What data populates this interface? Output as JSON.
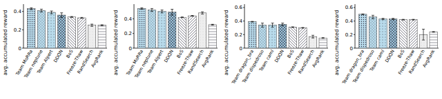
{
  "chart_data": [
    {
      "type": "bar",
      "y_label": "avg. accumulated reward",
      "categories": [
        "Team MoRRa",
        "Team neptune",
        "Team Alpert",
        "DDQN",
        "BoS",
        "Freeze-Thaw",
        "RandSearch",
        "AvgRank"
      ],
      "values": [
        0.43,
        0.41,
        0.39,
        0.36,
        0.34,
        0.33,
        0.25,
        0.25
      ],
      "errors": [
        0.01,
        0.015,
        0.015,
        0.025,
        0.005,
        0.005,
        0.012,
        0.005
      ],
      "colors": [
        "#b9dcec",
        "#b9dcec",
        "#b9dcec",
        "#9cc6dc",
        "#ffffff",
        "#ffffff",
        "#eeeeee",
        "#ffffff"
      ],
      "ylim": [
        0,
        0.48
      ],
      "yticks": [
        0,
        0.2,
        0.4
      ]
    },
    {
      "type": "bar",
      "y_label": "avg. accumulated reward",
      "categories": [
        "Team MoRRa",
        "Team neptune",
        "Team Alpert",
        "DDQN",
        "BoS",
        "Freeze-Thaw",
        "RandSearch",
        "AvgRank"
      ],
      "values": [
        0.54,
        0.52,
        0.5,
        0.49,
        0.42,
        0.44,
        0.48,
        0.32
      ],
      "errors": [
        0.01,
        0.02,
        0.02,
        0.04,
        0.005,
        0.005,
        0.015,
        0.005
      ],
      "colors": [
        "#b9dcec",
        "#b9dcec",
        "#b9dcec",
        "#9cc6dc",
        "#ffffff",
        "#ffffff",
        "#eeeeee",
        "#ffffff"
      ],
      "ylim": [
        0,
        0.6
      ],
      "yticks": [
        0,
        0.2,
        0.4
      ]
    },
    {
      "type": "bar",
      "y_label": "avg. accumulated reward",
      "categories": [
        "Team dragon_bra",
        "Team dispedroso",
        "Team caml",
        "DDQN",
        "BoS",
        "Freeze-Thaw",
        "RandSearch",
        "AvgRank"
      ],
      "values": [
        0.39,
        0.34,
        0.34,
        0.35,
        0.31,
        0.3,
        0.17,
        0.15
      ],
      "errors": [
        0.005,
        0.03,
        0.03,
        0.02,
        0.005,
        0.005,
        0.02,
        0.005
      ],
      "colors": [
        "#b9dcec",
        "#b9dcec",
        "#b9dcec",
        "#9cc6dc",
        "#ffffff",
        "#ffffff",
        "#eeeeee",
        "#ffffff"
      ],
      "ylim": [
        0,
        0.65
      ],
      "yticks": [
        0,
        0.2,
        0.4,
        0.6
      ]
    },
    {
      "type": "bar",
      "y_label": "avg. accumulated reward",
      "categories": [
        "Team dragon_bra",
        "Team dispedroso",
        "Team caml",
        "DDQN",
        "BoS",
        "Freeze-Thaw",
        "RandSearch",
        "AvgRank"
      ],
      "values": [
        0.5,
        0.46,
        0.43,
        0.43,
        0.42,
        0.42,
        0.2,
        0.24
      ],
      "errors": [
        0.005,
        0.025,
        0.01,
        0.01,
        0.005,
        0.005,
        0.08,
        0.005
      ],
      "colors": [
        "#b9dcec",
        "#b9dcec",
        "#b9dcec",
        "#9cc6dc",
        "#ffffff",
        "#ffffff",
        "#eeeeee",
        "#ffffff"
      ],
      "ylim": [
        0,
        0.65
      ],
      "yticks": [
        0,
        0.2,
        0.4,
        0.6
      ]
    }
  ]
}
